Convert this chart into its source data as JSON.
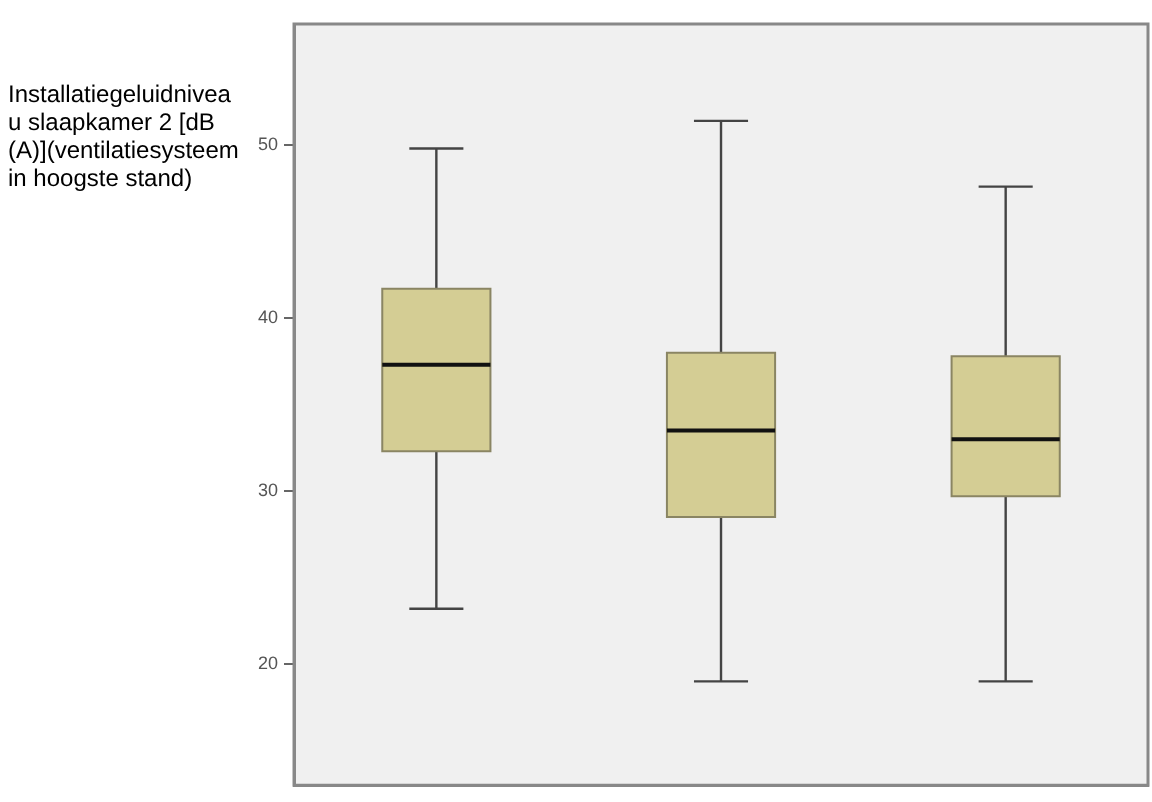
{
  "chart_data": {
    "type": "box",
    "ylabel": "Installatiegeluidniveau slaapkamer 2 [dB(A)](ventilatiesysteem in hoogste stand)",
    "categories": [
      null,
      null,
      null
    ],
    "color": "#d4cd94",
    "boxes": [
      {
        "low": 23.2,
        "q1": 32.3,
        "median": 37.3,
        "q3": 41.7,
        "high": 49.8
      },
      {
        "low": 19.0,
        "q1": 28.5,
        "median": 33.5,
        "q3": 38.0,
        "high": 51.4
      },
      {
        "low": 19.0,
        "q1": 29.7,
        "median": 33.0,
        "q3": 37.8,
        "high": 47.6
      }
    ],
    "ylim": [
      13,
      57
    ],
    "yticks": [
      20,
      30,
      40,
      50
    ],
    "grid": false,
    "tick_labels": "y"
  }
}
